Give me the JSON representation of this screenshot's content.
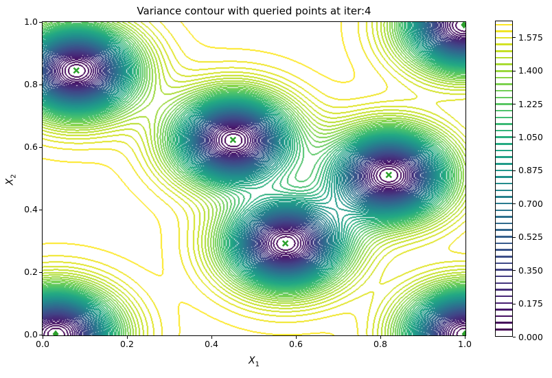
{
  "chart_data": {
    "type": "contour",
    "title": "Variance contour with queried points at iter:4",
    "xlabel": {
      "base": "X",
      "sub": "1"
    },
    "ylabel": {
      "base": "X",
      "sub": "2"
    },
    "xlim": [
      0.0,
      1.0
    ],
    "ylim": [
      0.0,
      1.0
    ],
    "x_ticks": [
      {
        "label": "0.0",
        "value": 0.0
      },
      {
        "label": "0.2",
        "value": 0.2
      },
      {
        "label": "0.4",
        "value": 0.4
      },
      {
        "label": "0.6",
        "value": 0.6
      },
      {
        "label": "0.8",
        "value": 0.8
      },
      {
        "label": "1.0",
        "value": 1.0
      }
    ],
    "y_ticks": [
      {
        "label": "0.0",
        "value": 0.0
      },
      {
        "label": "0.2",
        "value": 0.2
      },
      {
        "label": "0.4",
        "value": 0.4
      },
      {
        "label": "0.6",
        "value": 0.6
      },
      {
        "label": "0.8",
        "value": 0.8
      },
      {
        "label": "1.0",
        "value": 1.0
      }
    ],
    "grid": false,
    "legend": null,
    "colormap": "viridis",
    "viridis_stops": [
      "#440154",
      "#482475",
      "#414487",
      "#355f8d",
      "#2a788e",
      "#21918c",
      "#22a884",
      "#44bf70",
      "#7ad151",
      "#bddf26",
      "#fde725"
    ],
    "contour_levels": {
      "min": 0.035,
      "step": 0.035,
      "count": 47,
      "max": 1.645
    },
    "variance_field": {
      "model": "1 - sum of RBF bumps at queried points, scaled",
      "prior_variance": 1.66,
      "lengthscale": 0.095
    },
    "queried_points": [
      {
        "x": 0.08,
        "y": 0.845,
        "marker": "x"
      },
      {
        "x": 0.451,
        "y": 0.623,
        "marker": "x"
      },
      {
        "x": 0.82,
        "y": 0.511,
        "marker": "x"
      },
      {
        "x": 0.575,
        "y": 0.292,
        "marker": "x"
      },
      {
        "x": 0.031,
        "y": 0.002,
        "marker": "diamond"
      },
      {
        "x": 1.0,
        "y": 0.002,
        "marker": "diamond"
      },
      {
        "x": 0.998,
        "y": 0.991,
        "marker": "diamond"
      }
    ],
    "point_style": {
      "fill": "#2ca02c",
      "edge": "#ffffff"
    },
    "colorbar": {
      "orientation": "vertical",
      "value_range": [
        0.0,
        1.6625
      ],
      "tick_labels": [
        "0.000",
        "0.175",
        "0.350",
        "0.525",
        "0.700",
        "0.875",
        "1.050",
        "1.225",
        "1.400",
        "1.575"
      ],
      "tick_values": [
        0.0,
        0.175,
        0.35,
        0.525,
        0.7,
        0.875,
        1.05,
        1.225,
        1.4,
        1.575
      ]
    }
  }
}
